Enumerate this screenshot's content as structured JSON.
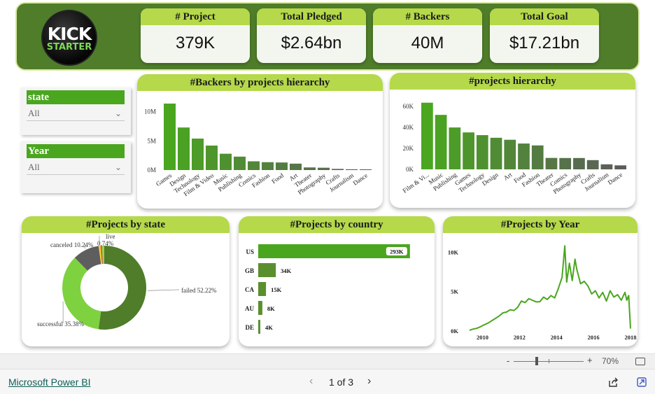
{
  "logo": {
    "line1": "KICK",
    "line2": "STARTER"
  },
  "kpis": [
    {
      "label": "# Project",
      "value": "379K"
    },
    {
      "label": "Total Pledged",
      "value": "$2.64bn"
    },
    {
      "label": "# Backers",
      "value": "40M"
    },
    {
      "label": "Total Goal",
      "value": "$17.21bn"
    }
  ],
  "slicers": {
    "state": {
      "label": "state",
      "value": "All"
    },
    "year": {
      "label": "Year",
      "value": "All"
    }
  },
  "colors": {
    "band": "#4f7d2a",
    "header": "#b5d94a",
    "bright": "#4aa61f",
    "mid": "#5a8f2e",
    "grey": "#5c5c5c"
  },
  "chart_data": [
    {
      "type": "bar",
      "title": "#Backers by projects hierarchy",
      "categories": [
        "Games",
        "Design",
        "Technology",
        "Film & Video",
        "Music",
        "Publishing",
        "Comics",
        "Fashion",
        "Food",
        "Art",
        "Theater",
        "Photography",
        "Crafts",
        "Journalism",
        "Dance"
      ],
      "values": [
        11400000,
        7300000,
        5400000,
        4200000,
        2800000,
        2300000,
        1500000,
        1350000,
        1300000,
        1100000,
        450000,
        400000,
        200000,
        130000,
        120000
      ],
      "yticks": [
        "0M",
        "5M",
        "10M"
      ],
      "ylim": [
        0,
        12000000
      ]
    },
    {
      "type": "bar",
      "title": "#projects hierarchy",
      "categories": [
        "Film & Vi...",
        "Music",
        "Publishing",
        "Games",
        "Technology",
        "Design",
        "Art",
        "Food",
        "Fashion",
        "Theater",
        "Comics",
        "Photography",
        "Crafts",
        "Journalism",
        "Dance"
      ],
      "values": [
        63500,
        51900,
        39900,
        35200,
        32600,
        30100,
        28200,
        24600,
        22800,
        10900,
        10800,
        10800,
        8800,
        4800,
        3800
      ],
      "yticks": [
        "0K",
        "20K",
        "40K",
        "60K"
      ],
      "ylim": [
        0,
        66000
      ]
    },
    {
      "type": "pie",
      "title": "#Projects by state",
      "slices": [
        {
          "label": "failed",
          "pct": "52.22%",
          "value": 52.22,
          "color": "#4f7d2a"
        },
        {
          "label": "successful",
          "pct": "35.38%",
          "value": 35.38,
          "color": "#7ed23f"
        },
        {
          "label": "canceled",
          "pct": "10.24%",
          "value": 10.24,
          "color": "#5e5e5e"
        },
        {
          "label": "live",
          "pct": "0.74%",
          "value": 0.74,
          "color": "#f5d033"
        },
        {
          "label": "",
          "pct": "",
          "value": 0.47,
          "color": "#d63a2a"
        },
        {
          "label": "",
          "pct": "",
          "value": 0.95,
          "color": "#9bd050"
        }
      ]
    },
    {
      "type": "bar",
      "orientation": "horizontal",
      "title": "#Projects by country",
      "categories": [
        "US",
        "GB",
        "CA",
        "AU",
        "DE"
      ],
      "values": [
        293000,
        34000,
        15000,
        8000,
        4000
      ],
      "labels": [
        "293K",
        "34K",
        "15K",
        "8K",
        "4K"
      ],
      "xlim": [
        0,
        300000
      ]
    },
    {
      "type": "line",
      "title": "#Projects by Year",
      "xticks": [
        "2010",
        "2012",
        "2014",
        "2016",
        "2018"
      ],
      "yticks": [
        "0K",
        "5K",
        "10K"
      ],
      "xlim": [
        2009,
        2018
      ],
      "ylim": [
        0,
        11000
      ],
      "series": [
        {
          "x": [
            2009.3,
            2009.5,
            2009.7,
            2009.9,
            2010.1,
            2010.3,
            2010.5,
            2010.7,
            2010.9,
            2011.1,
            2011.3,
            2011.5,
            2011.7,
            2011.9,
            2012.1,
            2012.3,
            2012.5,
            2012.7,
            2012.9,
            2013.1,
            2013.3,
            2013.5,
            2013.7,
            2013.9,
            2014.1,
            2014.3,
            2014.45,
            2014.55,
            2014.7,
            2014.85,
            2015.0,
            2015.1,
            2015.3,
            2015.5,
            2015.7,
            2015.9,
            2016.1,
            2016.3,
            2016.5,
            2016.7,
            2016.9,
            2017.1,
            2017.3,
            2017.5,
            2017.7,
            2017.8,
            2017.9,
            2018.0
          ],
          "values": [
            100,
            250,
            350,
            550,
            800,
            1000,
            1300,
            1600,
            1900,
            2300,
            2400,
            2700,
            2600,
            3000,
            3800,
            3600,
            4100,
            3900,
            3700,
            3700,
            4300,
            4000,
            4500,
            4200,
            5400,
            6800,
            10800,
            6200,
            8600,
            6400,
            9100,
            7800,
            6000,
            6300,
            5700,
            4700,
            5100,
            4200,
            4900,
            3800,
            5100,
            4300,
            4600,
            3900,
            4900,
            3900,
            4500,
            300
          ]
        }
      ]
    }
  ],
  "statusbar": {
    "zoom_minus": "-",
    "zoom_plus": "+",
    "zoom_level": "70%",
    "zoom_fraction": 0.33
  },
  "footer": {
    "brand": "Microsoft Power BI",
    "prev": "‹",
    "page_text": "1 of 3",
    "next": "›"
  }
}
